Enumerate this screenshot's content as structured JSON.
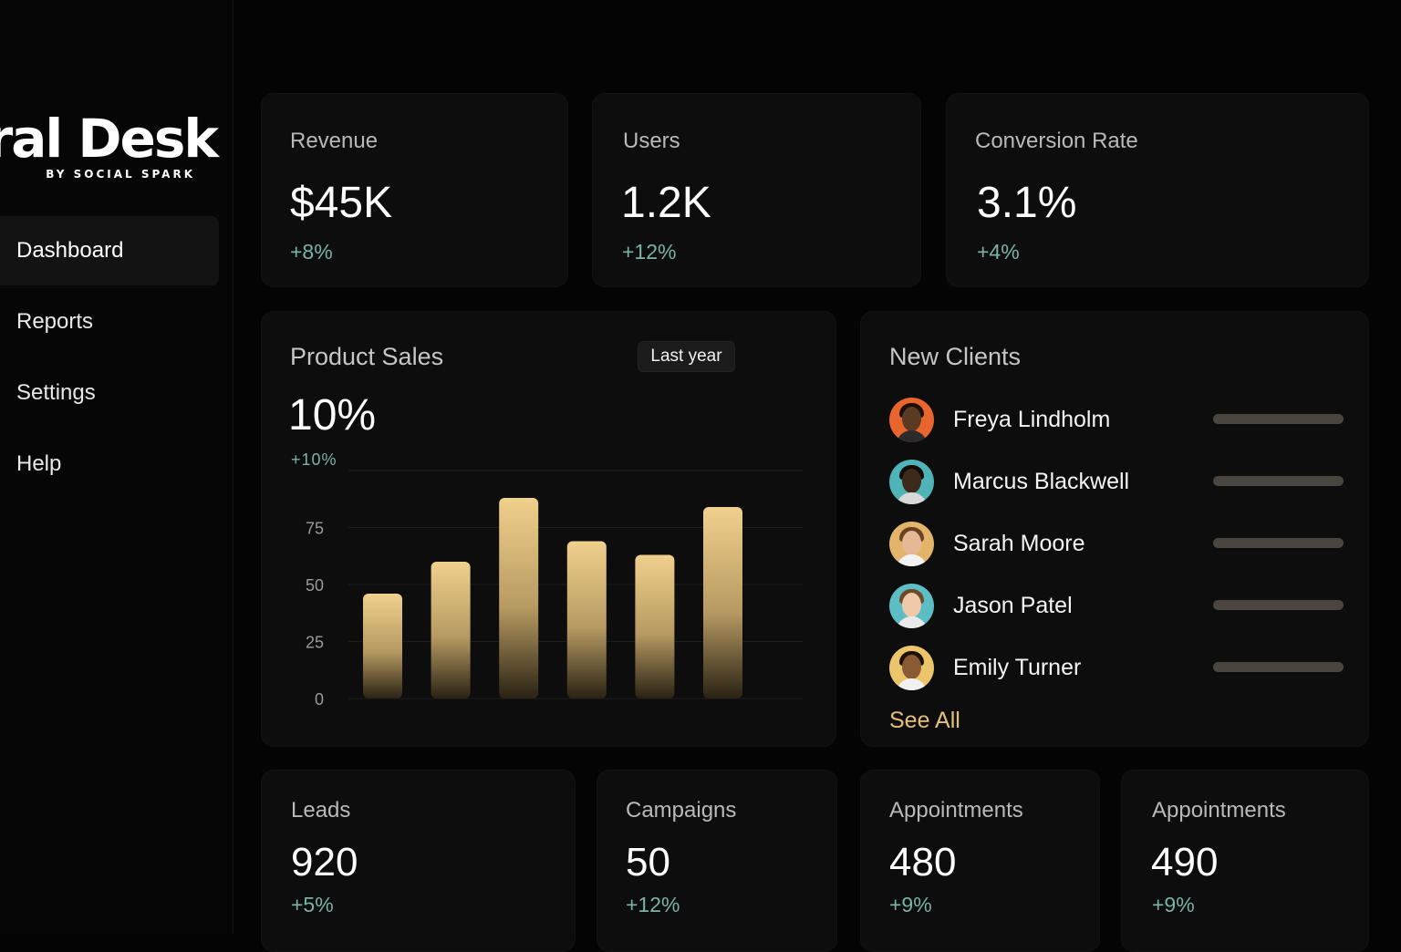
{
  "brand": {
    "title": "iral Desk",
    "subtitle": "BY SOCIAL SPARK"
  },
  "nav": [
    {
      "label": "Dashboard",
      "active": true
    },
    {
      "label": "Reports",
      "active": false
    },
    {
      "label": "Settings",
      "active": false
    },
    {
      "label": "Help",
      "active": false
    }
  ],
  "kpis": [
    {
      "label": "Revenue",
      "value": "$45K",
      "delta": "+8%"
    },
    {
      "label": "Users",
      "value": "1.2K",
      "delta": "+12%"
    },
    {
      "label": "Conversion Rate",
      "value": "3.1%",
      "delta": "+4%"
    }
  ],
  "product_sales": {
    "title": "Product Sales",
    "period": "Last year",
    "value": "10%",
    "delta": "+10%"
  },
  "chart_data": {
    "type": "bar",
    "title": "Product Sales",
    "categories": [
      "",
      "",
      "",
      "",
      "",
      ""
    ],
    "values": [
      46,
      60,
      88,
      69,
      63,
      84
    ],
    "yticks": [
      0,
      25,
      50,
      75
    ],
    "ylim": [
      0,
      100
    ],
    "xlabel": "",
    "ylabel": "",
    "grid": true,
    "bar_color_top": "#f0d08c",
    "bar_color_bottom": "#2a2214"
  },
  "clients": {
    "title": "New Clients",
    "see_all": "See All",
    "items": [
      {
        "name": "Freya Lindholm",
        "bg": "#e8652e",
        "skin": "#5a3a22",
        "hair": "#1a1008",
        "shirt": "#2b2b2b"
      },
      {
        "name": "Marcus Blackwell",
        "bg": "#4fb3b8",
        "skin": "#3e2a1c",
        "hair": "#140c07",
        "shirt": "#d9d9d9"
      },
      {
        "name": "Sarah Moore",
        "bg": "#e2b56a",
        "skin": "#e6b996",
        "hair": "#6b4322",
        "shirt": "#f2f2f2"
      },
      {
        "name": "Jason Patel",
        "bg": "#5cbec4",
        "skin": "#f0c9a8",
        "hair": "#6d4a2a",
        "shirt": "#eaeaea"
      },
      {
        "name": "Emily Turner",
        "bg": "#ecc46a",
        "skin": "#8a5a34",
        "hair": "#1d1209",
        "shirt": "#f1f1f1"
      }
    ]
  },
  "bottom_kpis": [
    {
      "label": "Leads",
      "value": "920",
      "delta": "+5%"
    },
    {
      "label": "Campaigns",
      "value": "50",
      "delta": "+12%"
    },
    {
      "label": "Appointments",
      "value": "480",
      "delta": "+9%"
    },
    {
      "label": "Appointments",
      "value": "490",
      "delta": "+9%"
    }
  ]
}
